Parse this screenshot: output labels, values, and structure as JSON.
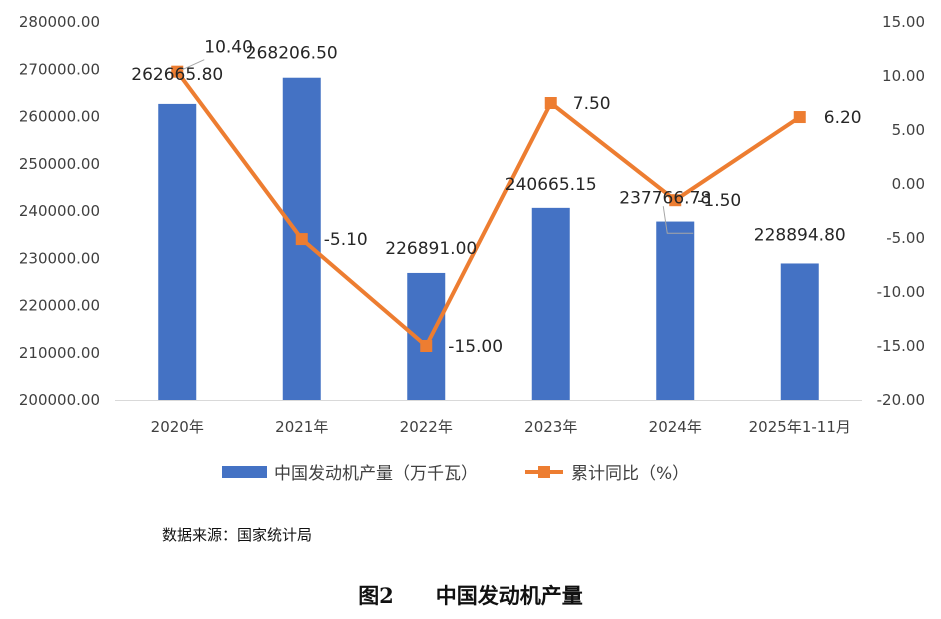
{
  "chart_data": {
    "type": "bar",
    "categories": [
      "2020年",
      "2021年",
      "2022年",
      "2023年",
      "2024年",
      "2025年1-11月"
    ],
    "series": [
      {
        "name": "中国发动机产量（万千瓦）",
        "type": "bar",
        "axis": "left",
        "color": "#4472C4",
        "values": [
          262665.8,
          268206.5,
          226891.0,
          240665.15,
          237766.78,
          228894.8
        ],
        "labels": [
          "262665.80",
          "268206.50",
          "226891.00",
          "240665.15",
          "237766.78",
          "228894.80"
        ]
      },
      {
        "name": "累计同比（%）",
        "type": "line",
        "axis": "right",
        "color": "#ED7D31",
        "values": [
          10.4,
          -5.1,
          -15.0,
          7.5,
          -1.5,
          6.2
        ],
        "labels": [
          "10.40",
          "-5.10",
          "-15.00",
          "7.50",
          "-1.50",
          "6.20"
        ]
      }
    ],
    "left_axis": {
      "range": [
        200000,
        280000
      ],
      "ticks": [
        "280000.00",
        "270000.00",
        "260000.00",
        "250000.00",
        "240000.00",
        "230000.00",
        "220000.00",
        "210000.00",
        "200000.00"
      ]
    },
    "right_axis": {
      "range": [
        -20,
        15
      ],
      "ticks": [
        "15.00",
        "10.00",
        "5.00",
        "0.00",
        "-5.00",
        "-10.00",
        "-15.00",
        "-20.00"
      ]
    },
    "legend_position": "bottom",
    "grid": false
  },
  "source": "数据来源：国家统计局",
  "caption": "图2　　中国发动机产量"
}
